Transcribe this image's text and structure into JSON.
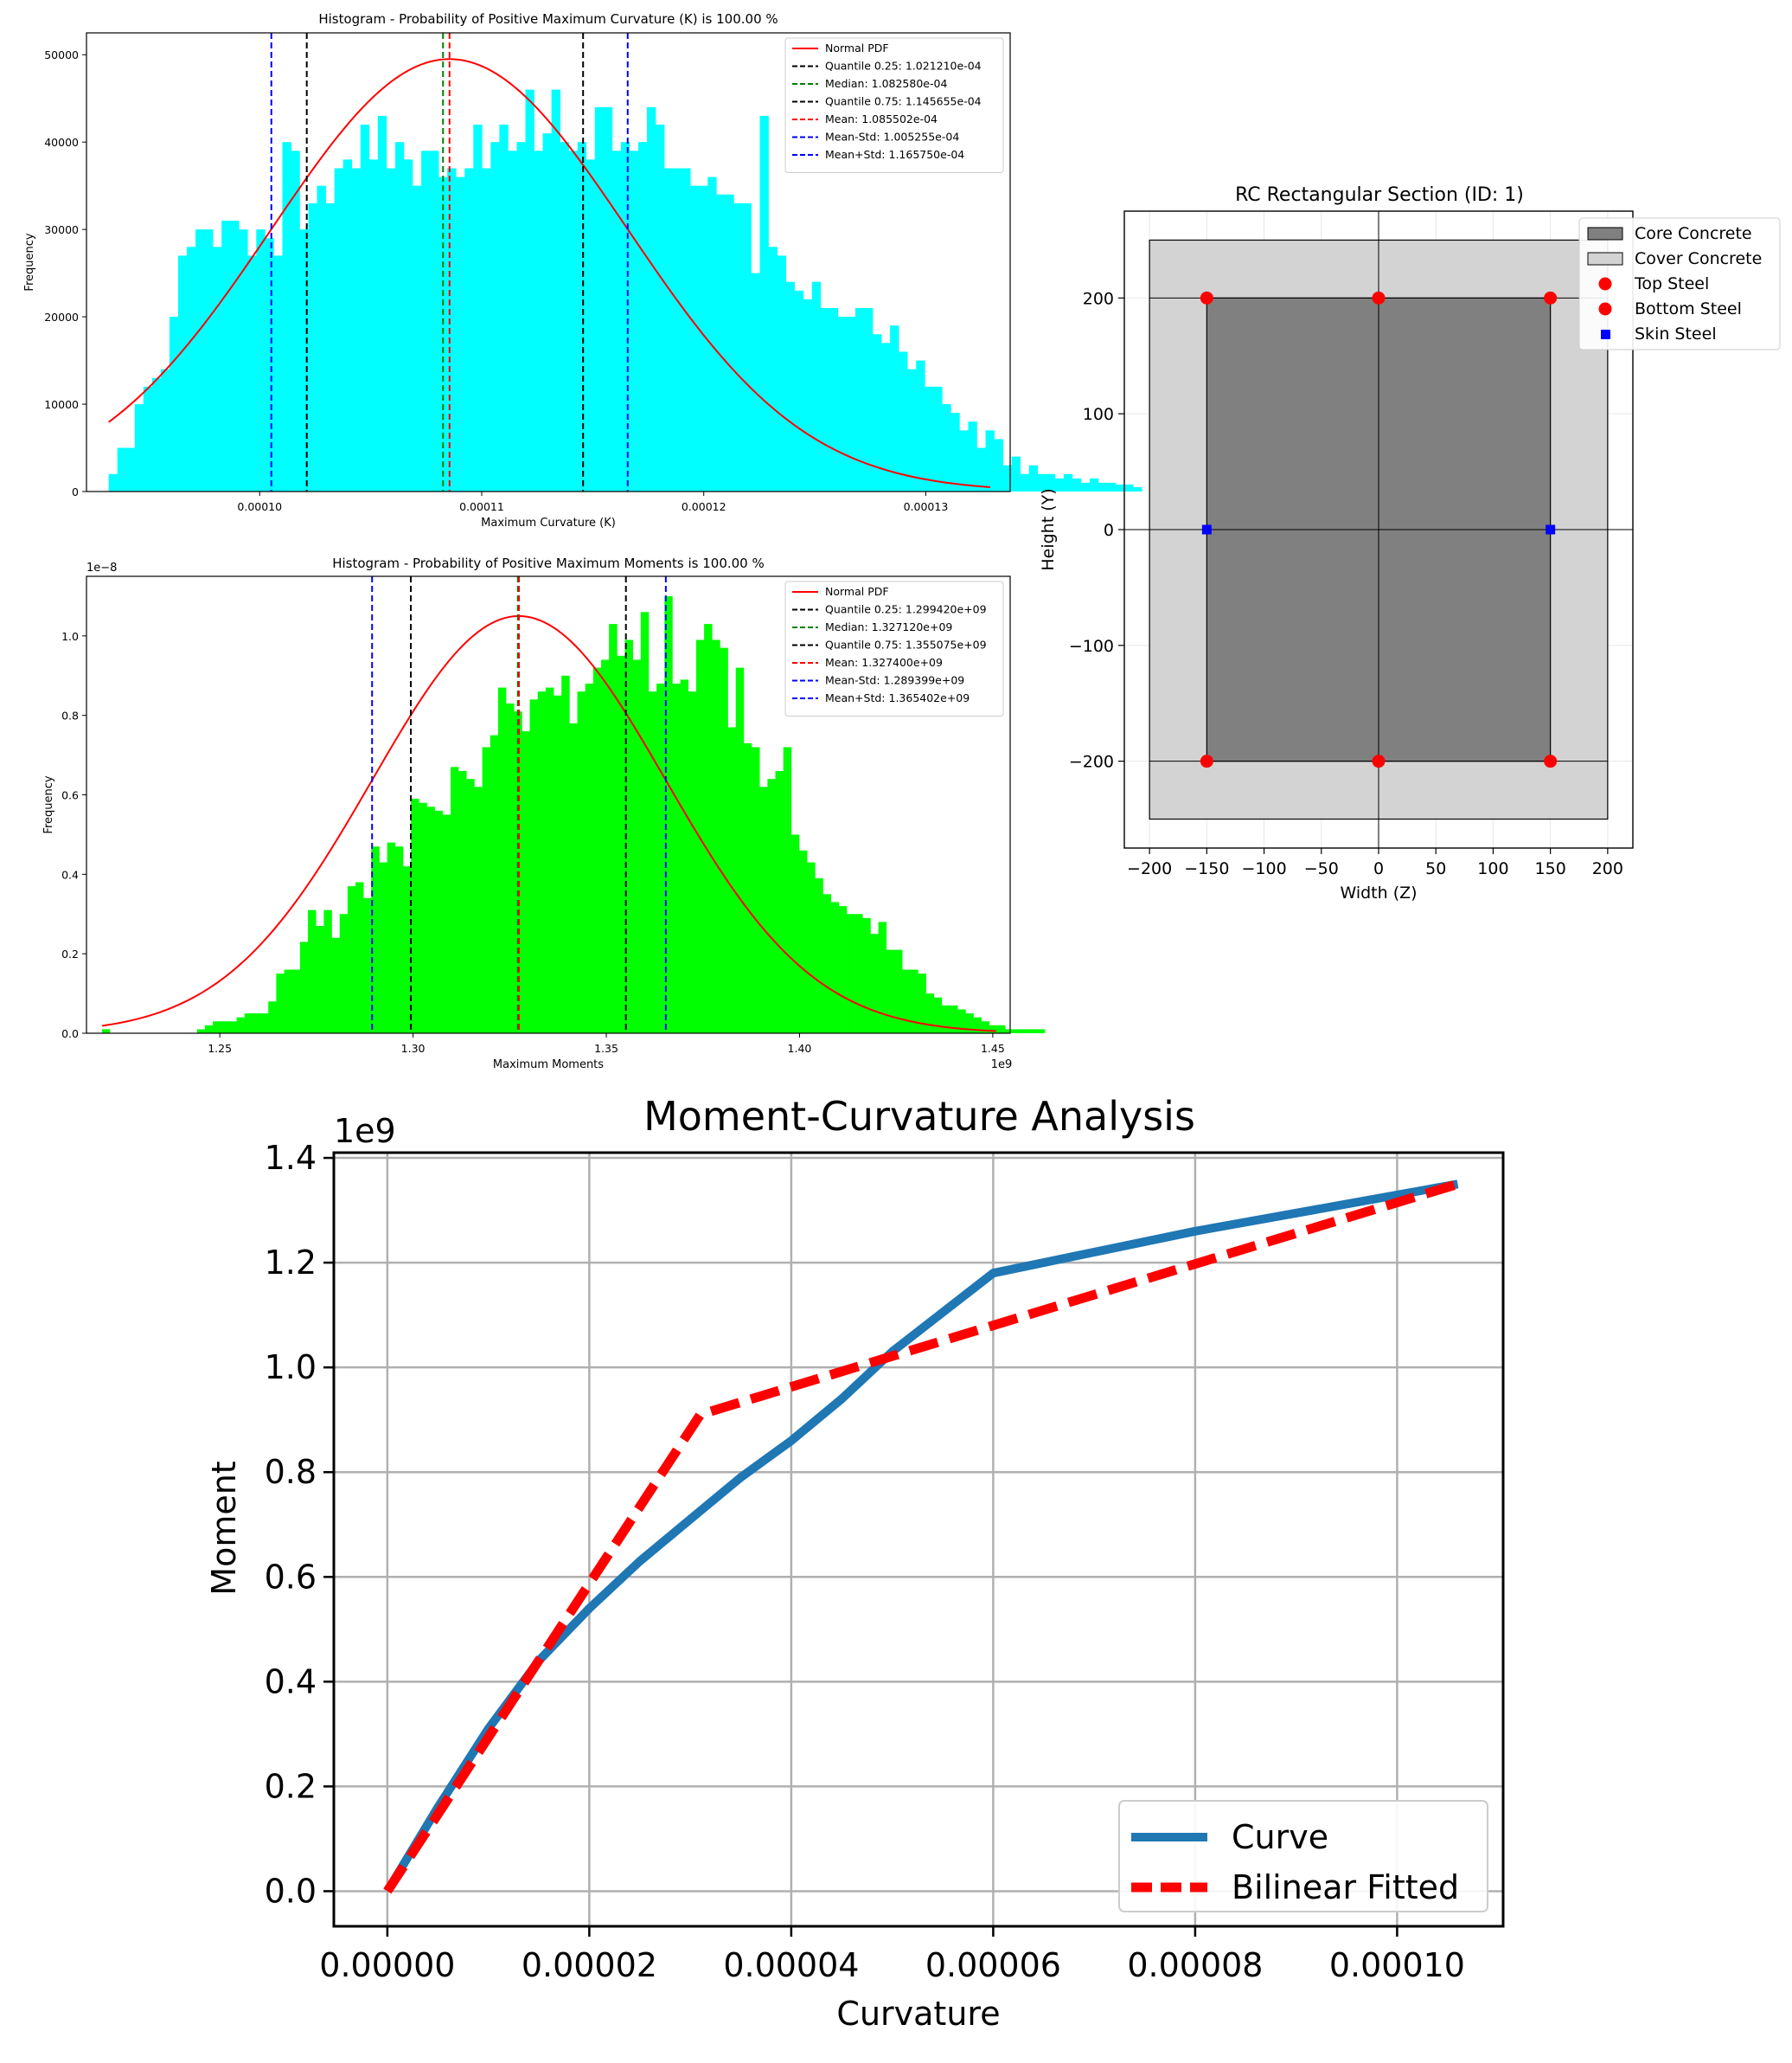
{
  "colors": {
    "hist1_fill": "#00ffff",
    "hist2_fill": "#00ff00",
    "pdf_line": "#ff0000",
    "quantile": "#000000",
    "median": "#008000",
    "mean": "#ff0000",
    "std": "#0000ff",
    "core": "#808080",
    "cover": "#d3d3d3",
    "steel": "#ff0000",
    "skin": "#0000ff",
    "curve": "#1f77b4",
    "bilinear": "#ff0000"
  },
  "chart_data": [
    {
      "type": "bar",
      "title": "Histogram - Probability of Positive Maximum Curvature (K) is 100.00 %",
      "xlabel": "Maximum Curvature (K)",
      "ylabel": "Frequency",
      "xlim": [
        9.22e-05,
        0.0001338
      ],
      "ylim": [
        0,
        52500
      ],
      "xticks": [
        0.0001,
        0.00011,
        0.00012,
        0.00013
      ],
      "xtick_labels": [
        "0.00010",
        "0.00011",
        "0.00012",
        "0.00013"
      ],
      "yticks": [
        0,
        10000,
        20000,
        30000,
        40000,
        50000
      ],
      "ytick_labels": [
        "0",
        "10000",
        "20000",
        "30000",
        "40000",
        "50000"
      ],
      "bins": {
        "start": 9.32e-05,
        "width": 3.91e-07
      },
      "values": [
        2000,
        5000,
        5000,
        10000,
        12000,
        13000,
        14000,
        20000,
        27000,
        28000,
        30000,
        30000,
        28000,
        31000,
        31000,
        30000,
        27000,
        30000,
        29000,
        27000,
        40000,
        39000,
        30000,
        33000,
        35000,
        33000,
        37000,
        38000,
        37000,
        42000,
        38000,
        43000,
        37000,
        40000,
        38000,
        35000,
        39000,
        39000,
        36000,
        37000,
        36000,
        37000,
        42000,
        37000,
        40000,
        42000,
        39000,
        40000,
        46000,
        39000,
        41000,
        46000,
        40000,
        39000,
        40000,
        38000,
        44000,
        44000,
        39000,
        40000,
        39000,
        40000,
        44000,
        42000,
        37000,
        37000,
        37000,
        35000,
        35000,
        36000,
        34000,
        34000,
        33000,
        33000,
        25000,
        43000,
        28000,
        27000,
        24000,
        23000,
        22000,
        24000,
        21000,
        21000,
        20000,
        20000,
        21000,
        21000,
        18000,
        17000,
        19000,
        16000,
        14000,
        15000,
        12000,
        12000,
        10000,
        9000,
        7000,
        8000,
        5000,
        7000,
        6000,
        3000,
        4000,
        2000,
        3000,
        2000,
        2000,
        1500,
        2000,
        1500,
        1000,
        1500,
        1000,
        1000,
        800,
        800,
        500
      ],
      "pdf": {
        "mean": 0.0001085502,
        "std": 8.0248e-06,
        "peak": 49500
      },
      "lines": [
        {
          "name": "Quantile 0.25: 1.021210e-04",
          "x": 0.000102121,
          "kind": "quantile"
        },
        {
          "name": "Median: 1.082580e-04",
          "x": 0.000108258,
          "kind": "median"
        },
        {
          "name": "Quantile 0.75: 1.145655e-04",
          "x": 0.0001145655,
          "kind": "quantile"
        },
        {
          "name": "Mean: 1.085502e-04",
          "x": 0.0001085502,
          "kind": "mean"
        },
        {
          "name": "Mean-Std: 1.005255e-04",
          "x": 0.0001005255,
          "kind": "std"
        },
        {
          "name": "Mean+Std: 1.165750e-04",
          "x": 0.000116575,
          "kind": "std"
        }
      ],
      "legend": [
        "Normal PDF",
        "Quantile 0.25: 1.021210e-04",
        "Median: 1.082580e-04",
        "Quantile 0.75: 1.145655e-04",
        "Mean: 1.085502e-04",
        "Mean-Std: 1.005255e-04",
        "Mean+Std: 1.165750e-04"
      ],
      "legend_position": "upper-right"
    },
    {
      "type": "bar",
      "title": "Histogram - Probability of Positive Maximum Moments is 100.00 %",
      "xlabel": "Maximum Moments",
      "ylabel": "Frequency",
      "x_offset_label": "1e9",
      "y_offset_label": "1e−8",
      "xlim": [
        1.2155,
        1.4545
      ],
      "ylim": [
        0,
        1.15
      ],
      "xticks": [
        1.25,
        1.3,
        1.35,
        1.4,
        1.45
      ],
      "xtick_labels": [
        "1.25",
        "1.30",
        "1.35",
        "1.40",
        "1.45"
      ],
      "yticks": [
        0,
        0.2,
        0.4,
        0.6,
        0.8,
        1.0
      ],
      "ytick_labels": [
        "0.0",
        "0.2",
        "0.4",
        "0.6",
        "0.8",
        "1.0"
      ],
      "bins": {
        "start": 1.2195,
        "width": 0.00205
      },
      "values": [
        0.01,
        0.0,
        0.0,
        0.0,
        0.0,
        0.0,
        0.0,
        0.0,
        0.0,
        0.0,
        0.0,
        0.0,
        0.01,
        0.02,
        0.03,
        0.03,
        0.03,
        0.04,
        0.05,
        0.05,
        0.05,
        0.08,
        0.15,
        0.16,
        0.16,
        0.23,
        0.31,
        0.27,
        0.31,
        0.24,
        0.3,
        0.37,
        0.38,
        0.34,
        0.47,
        0.43,
        0.48,
        0.47,
        0.42,
        0.59,
        0.58,
        0.57,
        0.56,
        0.55,
        0.67,
        0.66,
        0.64,
        0.62,
        0.72,
        0.75,
        0.87,
        0.83,
        0.81,
        0.76,
        0.84,
        0.86,
        0.87,
        0.85,
        0.9,
        0.78,
        0.86,
        0.88,
        0.92,
        0.94,
        1.03,
        0.95,
        0.99,
        0.94,
        1.06,
        0.86,
        0.88,
        1.1,
        0.88,
        0.89,
        0.86,
        0.99,
        1.03,
        0.99,
        0.97,
        0.77,
        0.92,
        0.73,
        0.72,
        0.62,
        0.64,
        0.66,
        0.72,
        0.5,
        0.46,
        0.43,
        0.39,
        0.35,
        0.33,
        0.32,
        0.3,
        0.3,
        0.29,
        0.25,
        0.28,
        0.21,
        0.21,
        0.16,
        0.16,
        0.15,
        0.1,
        0.09,
        0.07,
        0.07,
        0.06,
        0.05,
        0.04,
        0.03,
        0.02,
        0.02,
        0.01,
        0.01,
        0.01,
        0.01,
        0.01
      ],
      "pdf": {
        "mean": 1.3274,
        "std": 0.038001,
        "peak": 1.05
      },
      "lines": [
        {
          "name": "Quantile 0.25: 1.299420e+09",
          "x": 1.29942,
          "kind": "quantile"
        },
        {
          "name": "Median: 1.327120e+09",
          "x": 1.32712,
          "kind": "median"
        },
        {
          "name": "Quantile 0.75: 1.355075e+09",
          "x": 1.355075,
          "kind": "quantile"
        },
        {
          "name": "Mean: 1.327400e+09",
          "x": 1.3274,
          "kind": "mean"
        },
        {
          "name": "Mean-Std: 1.289399e+09",
          "x": 1.289399,
          "kind": "std"
        },
        {
          "name": "Mean+Std: 1.365402e+09",
          "x": 1.365402,
          "kind": "std"
        }
      ],
      "legend": [
        "Normal PDF",
        "Quantile 0.25: 1.299420e+09",
        "Median: 1.327120e+09",
        "Quantile 0.75: 1.355075e+09",
        "Mean: 1.327400e+09",
        "Mean-Std: 1.289399e+09",
        "Mean+Std: 1.365402e+09"
      ],
      "legend_position": "upper-right"
    },
    {
      "type": "scatter",
      "title": "RC Rectangular Section (ID: 1)",
      "xlabel": "Width (Z)",
      "ylabel": "Height (Y)",
      "xlim": [
        -222,
        222
      ],
      "ylim": [
        -275,
        275
      ],
      "xticks": [
        -200,
        -150,
        -100,
        -50,
        0,
        50,
        100,
        150,
        200
      ],
      "xtick_labels": [
        "−200",
        "−150",
        "−100",
        "−50",
        "0",
        "50",
        "100",
        "150",
        "200"
      ],
      "yticks": [
        -200,
        -100,
        0,
        100,
        200
      ],
      "ytick_labels": [
        "−200",
        "−100",
        "0",
        "100",
        "200"
      ],
      "grid": true,
      "cover_rect": {
        "z": [
          -200,
          200
        ],
        "y": [
          -250,
          250
        ]
      },
      "core_rect": {
        "z": [
          -150,
          150
        ],
        "y": [
          -200,
          200
        ]
      },
      "top_steel": [
        [
          -150,
          200
        ],
        [
          0,
          200
        ],
        [
          150,
          200
        ]
      ],
      "bottom_steel": [
        [
          -150,
          -200
        ],
        [
          0,
          -200
        ],
        [
          150,
          -200
        ]
      ],
      "skin_steel": [
        [
          -150,
          0
        ],
        [
          150,
          0
        ]
      ],
      "legend": [
        "Core Concrete",
        "Cover Concrete",
        "Top Steel",
        "Bottom Steel",
        "Skin Steel"
      ],
      "legend_position": "upper-right"
    },
    {
      "type": "line",
      "title": "Moment-Curvature Analysis",
      "xlabel": "Curvature",
      "ylabel": "Moment",
      "y_offset_label": "1e9",
      "xlim": [
        -5.3e-06,
        0.0001105
      ],
      "ylim": [
        -0.067,
        1.41
      ],
      "xticks": [
        0,
        2e-05,
        4e-05,
        6e-05,
        8e-05,
        0.0001
      ],
      "xtick_labels": [
        "0.00000",
        "0.00002",
        "0.00004",
        "0.00006",
        "0.00008",
        "0.00010"
      ],
      "yticks": [
        0,
        0.2,
        0.4,
        0.6,
        0.8,
        1.0,
        1.2,
        1.4
      ],
      "ytick_labels": [
        "0.0",
        "0.2",
        "0.4",
        "0.6",
        "0.8",
        "1.0",
        "1.2",
        "1.4"
      ],
      "grid": true,
      "series": [
        {
          "name": "Curve",
          "x": [
            0,
            5e-06,
            1e-05,
            1.5e-05,
            2e-05,
            2.5e-05,
            3e-05,
            3.5e-05,
            4e-05,
            4.5e-05,
            5e-05,
            6e-05,
            8e-05,
            0.000106
          ],
          "y": [
            0,
            0.16,
            0.31,
            0.44,
            0.54,
            0.63,
            0.71,
            0.79,
            0.86,
            0.94,
            1.03,
            1.18,
            1.26,
            1.35
          ]
        },
        {
          "name": "Bilinear Fitted",
          "x": [
            0,
            3.1e-05,
            0.000106
          ],
          "y": [
            0,
            0.91,
            1.35
          ]
        }
      ],
      "legend_position": "lower-right"
    }
  ]
}
